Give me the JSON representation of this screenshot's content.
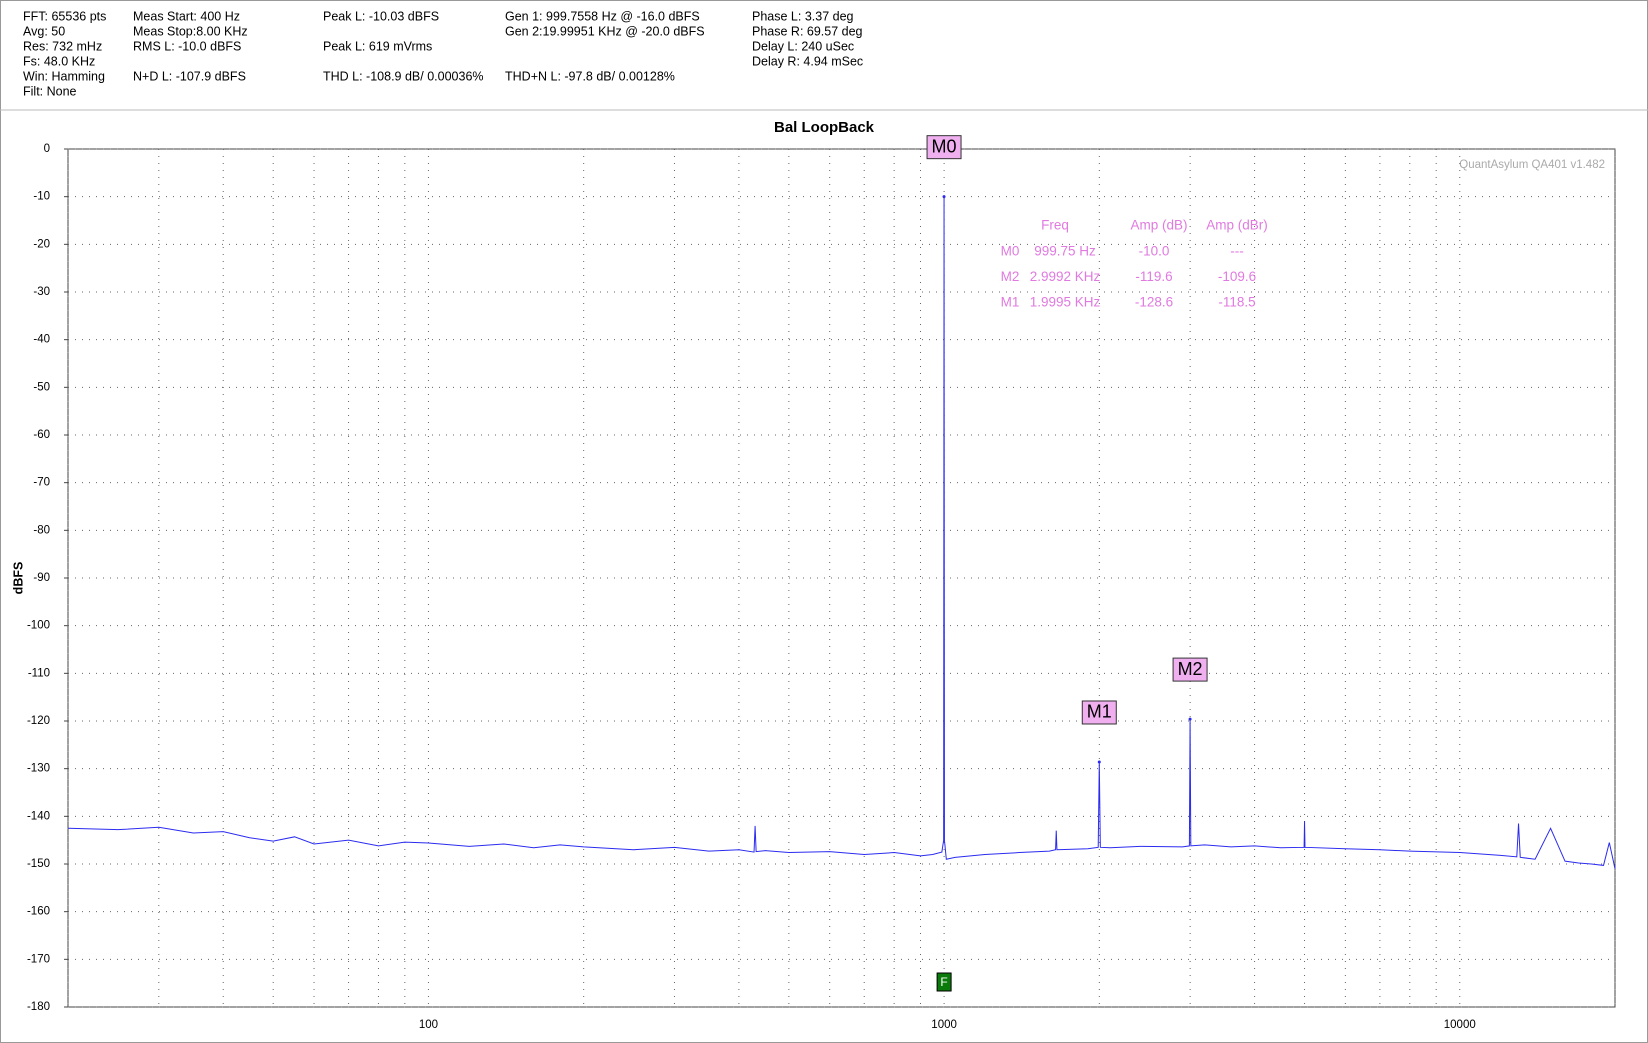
{
  "chart_data": {
    "type": "line",
    "title": "Bal LoopBack",
    "ylabel": "dBFS",
    "watermark": "QuantAsylum QA401 v1.482",
    "stats": [
      "FFT: 65536 pts",
      "Avg: 50",
      "Res: 732 mHz",
      "Fs: 48.0 KHz",
      "Win: Hamming",
      "Filt: None",
      "Meas Start: 400 Hz",
      "Meas Stop:8.00 KHz",
      "RMS L: -10.0 dBFS",
      "N+D L: -107.9 dBFS",
      "Peak L: -10.03 dBFS",
      "Peak L: 619 mVrms",
      "THD L: -108.9 dB/ 0.00036%",
      "Gen 1: 999.7558 Hz @ -16.0  dBFS",
      "Gen 2:19.99951 KHz @ -20.0  dBFS",
      "THD+N L: -97.8 dB/ 0.00128%",
      "Phase L: 3.37 deg",
      "Phase R: 69.57 deg",
      "Delay L: 240 uSec",
      "Delay R: 4.94 mSec"
    ],
    "xscale": "log",
    "grid": true,
    "xlim": [
      20,
      20000
    ],
    "xticks": [
      100,
      1000,
      10000
    ],
    "xminor": [
      20,
      30,
      40,
      50,
      60,
      70,
      80,
      90,
      200,
      300,
      400,
      500,
      600,
      700,
      800,
      900,
      2000,
      3000,
      4000,
      5000,
      6000,
      7000,
      8000,
      9000,
      20000
    ],
    "ylim": [
      -180,
      0
    ],
    "yticks": [
      0,
      -10,
      -20,
      -30,
      -40,
      -50,
      -60,
      -70,
      -80,
      -90,
      -100,
      -110,
      -120,
      -130,
      -140,
      -150,
      -160,
      -170,
      -180
    ],
    "series": [
      {
        "name": "L",
        "color": "#2b2bf0",
        "x": [
          20,
          25,
          30,
          35,
          40,
          45,
          50,
          55,
          60,
          70,
          80,
          90,
          100,
          120,
          140,
          160,
          180,
          200,
          250,
          300,
          350,
          400,
          428,
          430,
          432,
          450,
          500,
          600,
          700,
          800,
          900,
          950,
          990,
          998,
          999.75,
          1001.5,
          1010,
          1050,
          1200,
          1400,
          1600,
          1645,
          1650,
          1655,
          1900,
          1990,
          1999.5,
          2009,
          2100,
          2400,
          2900,
          2990,
          2999.2,
          3009,
          3200,
          3600,
          4000,
          4500,
          4990,
          5000,
          5010,
          6000,
          7000,
          8000,
          10000,
          12000,
          12900,
          13000,
          13100,
          14000,
          15000,
          16000,
          17000,
          18000,
          19000,
          19500,
          20000
        ],
        "values": [
          -142.5,
          -142.8,
          -142.3,
          -143.5,
          -143.2,
          -144.5,
          -145.2,
          -144.3,
          -145.8,
          -145.0,
          -146.2,
          -145.4,
          -145.6,
          -146.3,
          -145.8,
          -146.6,
          -146.0,
          -146.4,
          -147.0,
          -146.5,
          -147.3,
          -147.0,
          -147.5,
          -142.0,
          -147.4,
          -147.2,
          -147.6,
          -147.4,
          -148.0,
          -147.6,
          -148.3,
          -148.0,
          -147.5,
          -145.0,
          -10.0,
          -145.0,
          -149.0,
          -148.6,
          -148.0,
          -147.6,
          -147.3,
          -147.0,
          -143.0,
          -147.0,
          -146.8,
          -146.5,
          -128.6,
          -146.5,
          -146.6,
          -146.3,
          -146.4,
          -146.2,
          -119.6,
          -146.2,
          -146.0,
          -146.4,
          -146.2,
          -146.6,
          -146.5,
          -141.0,
          -146.5,
          -146.8,
          -147.0,
          -147.3,
          -147.6,
          -148.2,
          -148.5,
          -141.5,
          -148.6,
          -149.0,
          -142.5,
          -149.4,
          -149.8,
          -150.0,
          -150.3,
          -145.5,
          -151.0
        ]
      }
    ],
    "markers": [
      {
        "label": "M0",
        "x": 999.75,
        "y": -10.0
      },
      {
        "label": "M1",
        "x": 1999.5,
        "y": -128.6
      },
      {
        "label": "M2",
        "x": 2999.2,
        "y": -119.6
      }
    ],
    "marker_table": {
      "header": [
        "Freq",
        "Amp (dB)",
        "Amp (dBr)"
      ],
      "rows": [
        [
          "M0",
          "999.75 Hz",
          "-10.0",
          "---"
        ],
        [
          "M2",
          "2.9992 KHz",
          "-119.6",
          "-109.6"
        ],
        [
          "M1",
          "1.9995 KHz",
          "-128.6",
          "-118.5"
        ]
      ]
    },
    "flag": {
      "text": "F",
      "x": 1000
    }
  }
}
